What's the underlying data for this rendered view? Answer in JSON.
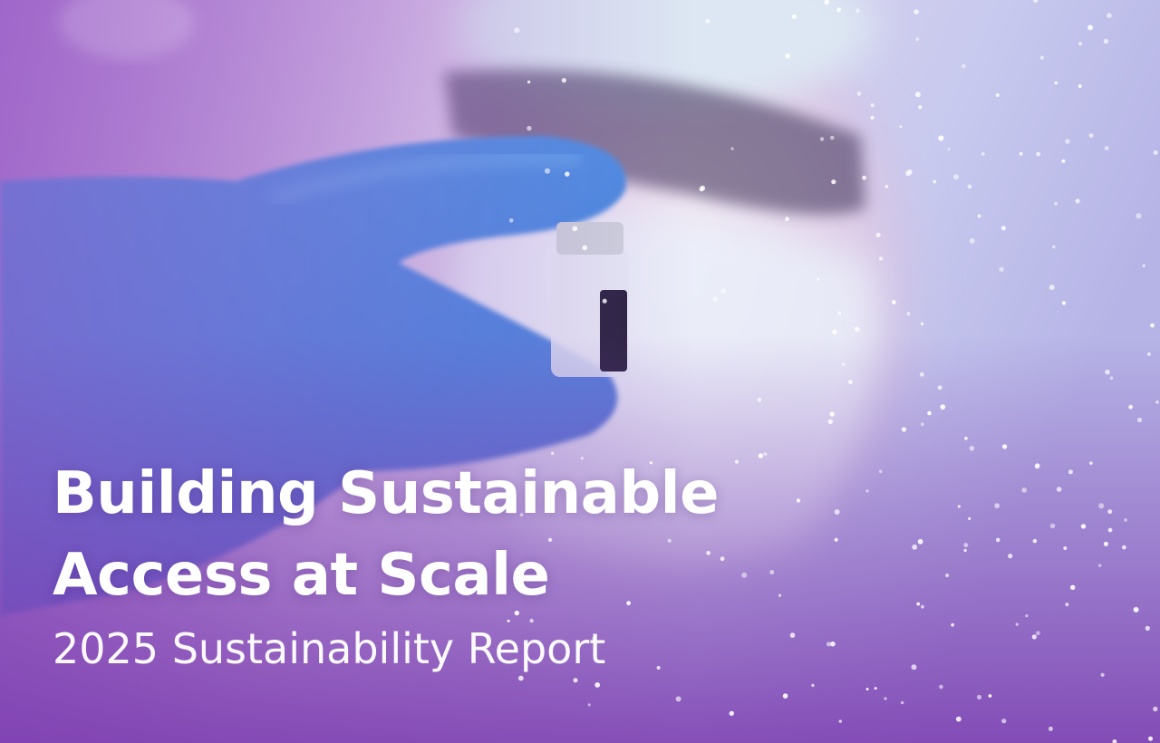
{
  "hero": {
    "title_lines": [
      "Building Sustainable",
      "Access at Scale"
    ],
    "subtitle": "2025 Sustainability Report"
  }
}
